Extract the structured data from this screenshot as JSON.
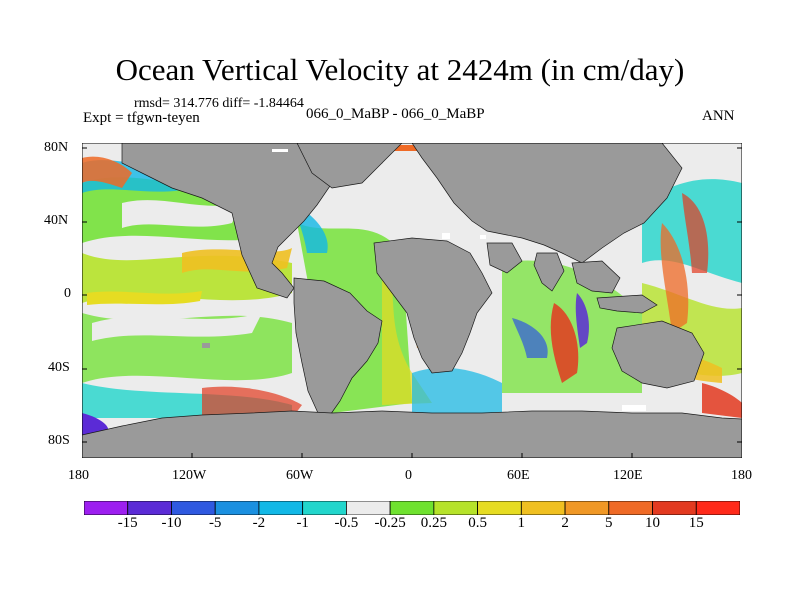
{
  "title": "Ocean Vertical Velocity at 2424m (in cm/day)",
  "stats": "rmsd= 314.776 diff= -1.84464",
  "expt": "Expt = tfgwn-teyen",
  "case": "066_0_MaBP - 066_0_MaBP",
  "season": "ANN",
  "lat_ticks": [
    "80N",
    "40N",
    "0",
    "40S",
    "80S"
  ],
  "lon_ticks": [
    "180",
    "120W",
    "60W",
    "0",
    "60E",
    "120E",
    "180"
  ],
  "colorbar": {
    "labels": [
      "-15",
      "-10",
      "-5",
      "-2",
      "-1",
      "-0.5",
      "-0.25",
      "0.25",
      "0.5",
      "1",
      "2",
      "5",
      "10",
      "15"
    ],
    "colors": [
      "#9d1ff0",
      "#5b2bd6",
      "#2f59e0",
      "#1b90e0",
      "#12b8e6",
      "#22d6cc",
      "#ececec",
      "#6fe22f",
      "#b6e32a",
      "#e6dc22",
      "#f0c021",
      "#f09826",
      "#ef6a26",
      "#e33a20",
      "#ff2a1a"
    ]
  },
  "colors": {
    "land": "#9a9a9a",
    "background": "#ffffff"
  }
}
